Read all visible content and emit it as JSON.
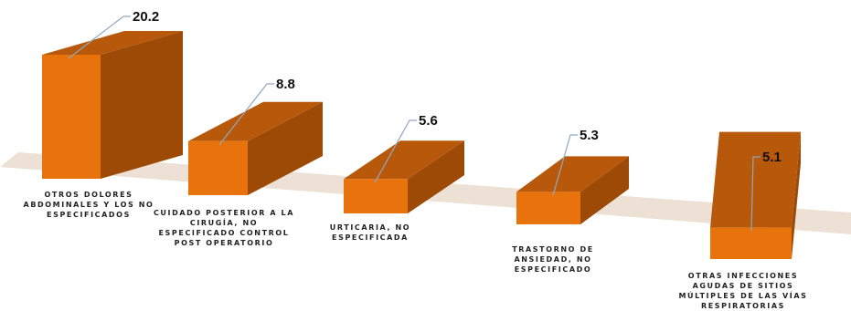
{
  "chart_data": {
    "type": "bar",
    "title": "",
    "xlabel": "",
    "ylabel": "",
    "categories": [
      "OTROS DOLORES ABDOMINALES Y LOS NO ESPECIFICADOS",
      "CUIDADO POSTERIOR A LA CIRUGÍA, NO ESPECIFICADO CONTROL POST OPERATORIO",
      "URTICARIA, NO ESPECIFICADA",
      "TRASTORNO DE ANSIEDAD, NO ESPECIFICADO",
      "OTRAS INFECCIONES AGUDAS DE SITIOS MÚLTIPLES DE LAS VÍAS RESPIRATORIAS"
    ],
    "category_lines": [
      [
        "OTROS DOLORES",
        "ABDOMINALES Y LOS NO",
        "ESPECIFICADOS"
      ],
      [
        "CUIDADO POSTERIOR A LA",
        "CIRUGÍA, NO",
        "ESPECIFICADO CONTROL",
        "POST OPERATORIO"
      ],
      [
        "URTICARIA, NO",
        "ESPECIFICADA"
      ],
      [
        "TRASTORNO DE",
        "ANSIEDAD, NO",
        "ESPECIFICADO"
      ],
      [
        "OTRAS INFECCIONES",
        "AGUDAS DE SITIOS",
        "MÚLTIPLES DE LAS VÍAS",
        "RESPIRATORIAS"
      ]
    ],
    "values": [
      20.2,
      8.8,
      5.6,
      5.3,
      5.1
    ],
    "value_labels": [
      "20.2",
      "8.8",
      "5.6",
      "5.3",
      "5.1"
    ],
    "style": "3d-bar",
    "grid": false,
    "legend": "none",
    "colors": {
      "front": "#E8720C",
      "side": "#9C4A06",
      "top": "#B8580A",
      "floor": "#EDE0D4",
      "leader": "#8FA9C0"
    }
  }
}
